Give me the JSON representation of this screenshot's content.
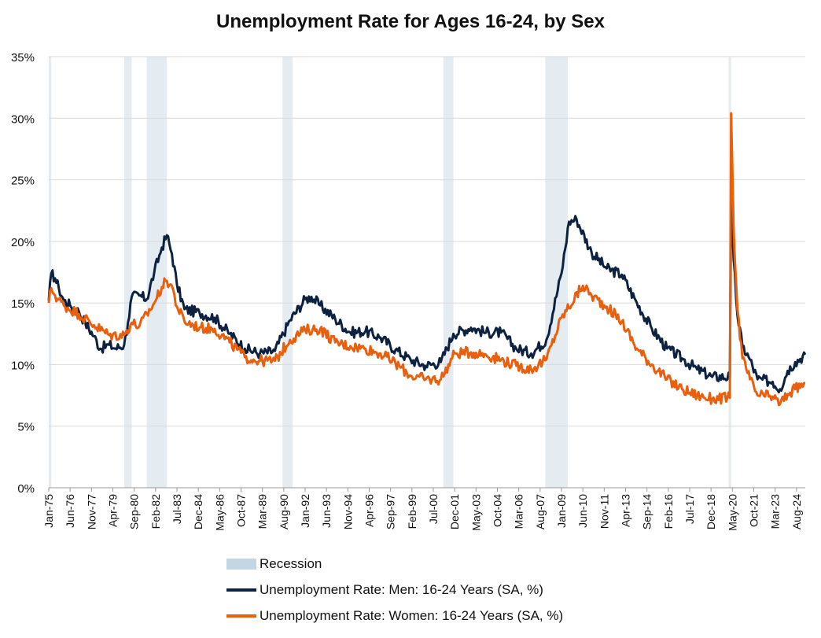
{
  "chart_data": {
    "type": "line",
    "title": "Unemployment Rate for Ages 16-24, by Sex",
    "xlabel": "",
    "ylabel": "",
    "ylim": [
      0,
      35
    ],
    "y_ticks": [
      "0%",
      "5%",
      "10%",
      "15%",
      "20%",
      "25%",
      "30%",
      "35%"
    ],
    "y_tick_values": [
      0,
      5,
      10,
      15,
      20,
      25,
      30,
      35
    ],
    "x_range": [
      "Jan-75",
      "Mar-25"
    ],
    "x_ticks": [
      "Jan-75",
      "Jun-76",
      "Nov-77",
      "Apr-79",
      "Sep-80",
      "Feb-82",
      "Jul-83",
      "Dec-84",
      "May-86",
      "Oct-87",
      "Mar-89",
      "Aug-90",
      "Jan-92",
      "Jun-93",
      "Nov-94",
      "Apr-96",
      "Sep-97",
      "Feb-99",
      "Jul-00",
      "Dec-01",
      "May-03",
      "Oct-04",
      "Mar-06",
      "Aug-07",
      "Jan-09",
      "Jun-10",
      "Nov-11",
      "Apr-13",
      "Sep-14",
      "Feb-16",
      "Jul-17",
      "Dec-18",
      "May-20",
      "Oct-21",
      "Mar-23",
      "Aug-24"
    ],
    "recessions": [
      {
        "start": "Jan-75",
        "end": "Mar-75"
      },
      {
        "start": "Jan-80",
        "end": "Jul-80"
      },
      {
        "start": "Jul-81",
        "end": "Nov-82"
      },
      {
        "start": "Jul-90",
        "end": "Mar-91"
      },
      {
        "start": "Mar-01",
        "end": "Nov-01"
      },
      {
        "start": "Dec-07",
        "end": "Jun-09"
      },
      {
        "start": "Feb-20",
        "end": "Apr-20"
      }
    ],
    "series": [
      {
        "name": "Unemployment Rate: Men: 16-24 Years (SA, %)",
        "color": "#0d2240",
        "points": [
          [
            "Jan-75",
            15.2
          ],
          [
            "Mar-75",
            17.4
          ],
          [
            "Jun-75",
            17.0
          ],
          [
            "Sep-75",
            16.2
          ],
          [
            "Jan-76",
            15.2
          ],
          [
            "Jun-76",
            14.8
          ],
          [
            "Jan-77",
            14.3
          ],
          [
            "Jun-77",
            13.4
          ],
          [
            "Jan-78",
            12.3
          ],
          [
            "Jun-78",
            11.3
          ],
          [
            "Jan-79",
            11.6
          ],
          [
            "Jun-79",
            11.3
          ],
          [
            "Jan-80",
            11.6
          ],
          [
            "Apr-80",
            13.4
          ],
          [
            "Jul-80",
            15.5
          ],
          [
            "Jan-81",
            15.6
          ],
          [
            "Jul-81",
            15.3
          ],
          [
            "Jan-82",
            17.5
          ],
          [
            "Jul-82",
            19.5
          ],
          [
            "Nov-82",
            20.5
          ],
          [
            "Mar-83",
            19.0
          ],
          [
            "Jul-83",
            16.5
          ],
          [
            "Jan-84",
            14.5
          ],
          [
            "Jan-85",
            14.2
          ],
          [
            "Jan-86",
            13.8
          ],
          [
            "Jan-87",
            12.5
          ],
          [
            "Jan-88",
            11.3
          ],
          [
            "Jan-89",
            10.9
          ],
          [
            "Jan-90",
            11.1
          ],
          [
            "Jan-91",
            13.6
          ],
          [
            "Jan-92",
            15.3
          ],
          [
            "Jun-92",
            15.5
          ],
          [
            "Jan-93",
            14.8
          ],
          [
            "Jan-94",
            13.7
          ],
          [
            "Jan-95",
            12.6
          ],
          [
            "Jan-96",
            12.7
          ],
          [
            "Jan-97",
            12.2
          ],
          [
            "Jan-98",
            11.2
          ],
          [
            "Jan-99",
            10.4
          ],
          [
            "Jan-00",
            9.9
          ],
          [
            "Jan-01",
            10.2
          ],
          [
            "Nov-01",
            12.5
          ],
          [
            "Jan-03",
            13.0
          ],
          [
            "Jan-04",
            12.6
          ],
          [
            "Jan-05",
            12.6
          ],
          [
            "Jan-06",
            11.3
          ],
          [
            "Jan-07",
            10.9
          ],
          [
            "Jan-08",
            12.0
          ],
          [
            "Jan-09",
            17.4
          ],
          [
            "Jul-09",
            21.6
          ],
          [
            "Jan-10",
            21.8
          ],
          [
            "Jan-11",
            19.1
          ],
          [
            "Jan-12",
            17.8
          ],
          [
            "Jan-13",
            17.3
          ],
          [
            "Jan-14",
            15.0
          ],
          [
            "Jan-15",
            12.9
          ],
          [
            "Jan-16",
            11.3
          ],
          [
            "Jan-17",
            10.5
          ],
          [
            "Jan-18",
            9.6
          ],
          [
            "Jan-19",
            9.0
          ],
          [
            "Mar-20",
            9.0
          ],
          [
            "Apr-20",
            23.5
          ],
          [
            "Jun-20",
            18.5
          ],
          [
            "Sep-20",
            14.0
          ],
          [
            "Jan-21",
            11.5
          ],
          [
            "Jul-21",
            10.4
          ],
          [
            "Jan-22",
            8.8
          ],
          [
            "Jan-23",
            8.6
          ],
          [
            "Jul-23",
            8.0
          ],
          [
            "Jan-24",
            9.5
          ],
          [
            "Jul-24",
            10.2
          ],
          [
            "Mar-25",
            10.8
          ]
        ]
      },
      {
        "name": "Unemployment Rate: Women: 16-24 Years (SA, %)",
        "color": "#e8600e",
        "points": [
          [
            "Jan-75",
            15.0
          ],
          [
            "Mar-75",
            16.2
          ],
          [
            "Jun-75",
            15.6
          ],
          [
            "Jan-76",
            14.8
          ],
          [
            "Jan-77",
            14.1
          ],
          [
            "Jan-78",
            13.2
          ],
          [
            "Jan-79",
            12.4
          ],
          [
            "Jan-80",
            12.4
          ],
          [
            "Jul-80",
            13.4
          ],
          [
            "Jan-81",
            13.1
          ],
          [
            "Jan-82",
            15.0
          ],
          [
            "Jul-82",
            16.3
          ],
          [
            "Nov-82",
            16.8
          ],
          [
            "Mar-83",
            16.4
          ],
          [
            "Jul-83",
            14.7
          ],
          [
            "Jan-84",
            13.5
          ],
          [
            "Jan-85",
            13.0
          ],
          [
            "Jan-86",
            12.9
          ],
          [
            "Jan-87",
            11.8
          ],
          [
            "Jan-88",
            10.6
          ],
          [
            "Jan-89",
            10.3
          ],
          [
            "Jan-90",
            10.3
          ],
          [
            "Jan-91",
            12.0
          ],
          [
            "Jan-92",
            12.8
          ],
          [
            "Jan-93",
            12.9
          ],
          [
            "Jan-94",
            11.8
          ],
          [
            "Jan-95",
            11.5
          ],
          [
            "Jan-96",
            11.3
          ],
          [
            "Jan-97",
            10.9
          ],
          [
            "Jan-98",
            10.1
          ],
          [
            "Jan-99",
            9.1
          ],
          [
            "Jan-00",
            8.8
          ],
          [
            "Jan-01",
            8.8
          ],
          [
            "Dec-01",
            10.9
          ],
          [
            "Jan-03",
            11.0
          ],
          [
            "Jan-04",
            10.8
          ],
          [
            "Jan-05",
            10.4
          ],
          [
            "Jan-06",
            9.9
          ],
          [
            "Jan-07",
            9.6
          ],
          [
            "Jan-08",
            10.4
          ],
          [
            "Jan-09",
            13.8
          ],
          [
            "Jun-10",
            16.4
          ],
          [
            "Jan-11",
            15.6
          ],
          [
            "Jan-12",
            14.7
          ],
          [
            "Jan-13",
            13.5
          ],
          [
            "Jan-14",
            11.3
          ],
          [
            "Jan-15",
            10.0
          ],
          [
            "Jan-16",
            8.8
          ],
          [
            "Jan-17",
            8.0
          ],
          [
            "Jan-18",
            7.5
          ],
          [
            "Jan-19",
            7.2
          ],
          [
            "Mar-20",
            7.3
          ],
          [
            "Apr-20",
            30.4
          ],
          [
            "Jun-20",
            21.0
          ],
          [
            "Sep-20",
            14.5
          ],
          [
            "Jan-21",
            10.5
          ],
          [
            "Jul-21",
            8.8
          ],
          [
            "Jan-22",
            7.5
          ],
          [
            "Jan-23",
            7.4
          ],
          [
            "Jul-23",
            6.8
          ],
          [
            "Jan-24",
            7.6
          ],
          [
            "Jul-24",
            8.0
          ],
          [
            "Mar-25",
            8.5
          ]
        ]
      }
    ],
    "legend": [
      {
        "label": "Recession",
        "kind": "box",
        "color": "#c4d5e3"
      },
      {
        "label": "Unemployment Rate: Men: 16-24 Years (SA, %)",
        "kind": "line",
        "color": "#0d2240"
      },
      {
        "label": "Unemployment Rate: Women: 16-24 Years (SA, %)",
        "kind": "line",
        "color": "#e8600e"
      }
    ],
    "legend_position": "bottom-center",
    "grid": true
  }
}
